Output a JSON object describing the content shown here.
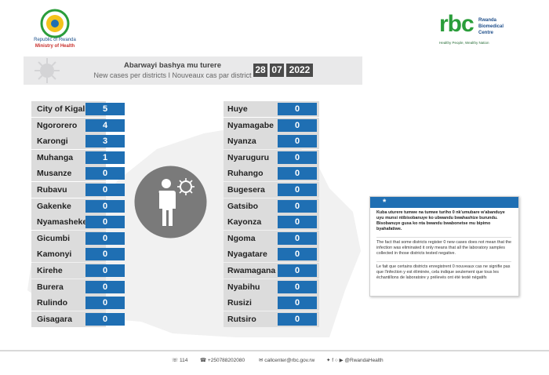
{
  "header": {
    "republic": "Republic of Rwanda",
    "ministry": "Ministry of Health",
    "rbc_logo_text": "rbc",
    "rbc_name_1": "Rwanda",
    "rbc_name_2": "Biomedical",
    "rbc_name_3": "Centre",
    "rbc_tagline": "Healthy People, Wealthy Nation"
  },
  "banner": {
    "title_rw": "Abarwayi bashya mu turere",
    "title_en_fr": "New cases per districts  I  Nouveaux cas par district",
    "date_day": "28",
    "date_month": "07",
    "date_year": "2022"
  },
  "left_districts": [
    {
      "name": "City of Kigali",
      "value": "5"
    },
    {
      "name": "Ngororero",
      "value": "4"
    },
    {
      "name": "Karongi",
      "value": "3"
    },
    {
      "name": "Muhanga",
      "value": "1"
    },
    {
      "name": "Musanze",
      "value": "0"
    },
    {
      "name": "Rubavu",
      "value": "0"
    },
    {
      "name": "Gakenke",
      "value": "0"
    },
    {
      "name": "Nyamasheke",
      "value": "0"
    },
    {
      "name": "Gicumbi",
      "value": "0"
    },
    {
      "name": "Kamonyi",
      "value": "0"
    },
    {
      "name": "Kirehe",
      "value": "0"
    },
    {
      "name": "Burera",
      "value": "0"
    },
    {
      "name": "Rulindo",
      "value": "0"
    },
    {
      "name": "Gisagara",
      "value": "0"
    }
  ],
  "right_districts": [
    {
      "name": "Huye",
      "value": "0"
    },
    {
      "name": "Nyamagabe",
      "value": "0"
    },
    {
      "name": "Nyanza",
      "value": "0"
    },
    {
      "name": "Nyaruguru",
      "value": "0"
    },
    {
      "name": "Ruhango",
      "value": "0"
    },
    {
      "name": "Bugesera",
      "value": "0"
    },
    {
      "name": "Gatsibo",
      "value": "0"
    },
    {
      "name": "Kayonza",
      "value": "0"
    },
    {
      "name": "Ngoma",
      "value": "0"
    },
    {
      "name": "Nyagatare",
      "value": "0"
    },
    {
      "name": "Rwamagana",
      "value": "0"
    },
    {
      "name": "Nyabihu",
      "value": "0"
    },
    {
      "name": "Rusizi",
      "value": "0"
    },
    {
      "name": "Rutsiro",
      "value": "0"
    }
  ],
  "note": {
    "star": "*",
    "rw": "Kuba uturere tumwe na tumwe turiho 0 nk'umubare w'abanduye uyu munsi ntibisobanuye ko ubwandu bwahashize burundu. Bisobanuye gusa ko nta bwandu bwabonetse mu bipimo byahafatiwe.",
    "en": "The fact that some districts register 0 new cases does not mean that the infection was eliminated it only means that all the laboratory samples collected in those districts tested negative.",
    "fr": "Le fait que certains districts enregistrent 0 nouveaux cas ne signifie pas que l'infection y est éliminée, cela indique seulement que tous les échantillons de laboratoire y prélevés ont été testé négatifs"
  },
  "footer": {
    "hotline": "114",
    "phone": "+250788202080",
    "email": "callcenter@rbc.gov.rw",
    "social": "@RwandaHealth"
  },
  "colors": {
    "accent_blue": "#1f6fb3",
    "banner_grey": "#e9e9ea",
    "date_box": "#4b4b4b",
    "brand_green": "#2a9d3a"
  }
}
